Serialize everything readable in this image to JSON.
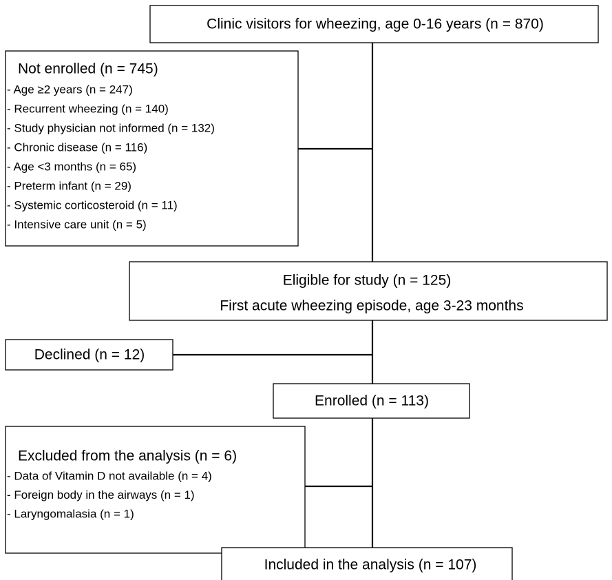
{
  "nodes": [
    {
      "label": "Clinic visitors for wheezing, age 0-16 years (n = 870)"
    },
    {
      "title": "Not enrolled (n = 745)",
      "items": [
        "- Age ≥2 years (n = 247)",
        "- Recurrent wheezing (n = 140)",
        "- Study physician not informed (n = 132)",
        "- Chronic disease (n = 116)",
        "- Age <3 months (n = 65)",
        "- Preterm infant (n = 29)",
        "- Systemic corticosteroid (n = 11)",
        "- Intensive care unit (n = 5)"
      ]
    },
    {
      "lines": [
        "Eligible for study (n = 125)",
        "First acute wheezing episode, age 3-23 months"
      ]
    },
    {
      "label": "Declined (n = 12)"
    },
    {
      "label": "Enrolled (n = 113)"
    },
    {
      "title": "Excluded from the analysis (n = 6)",
      "items": [
        "- Data of Vitamin D not available (n = 4)",
        "- Foreign body in the airways (n = 1)",
        "- Laryngomalasia (n = 1)"
      ]
    },
    {
      "label": "Included in the analysis (n = 107)"
    }
  ]
}
